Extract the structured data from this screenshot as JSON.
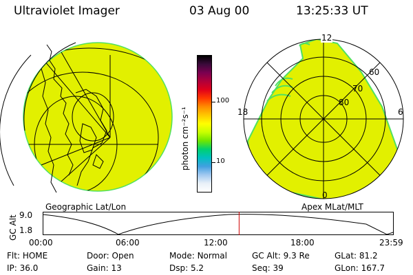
{
  "header": {
    "instrument": "Ultraviolet Imager",
    "date": "03 Aug 00",
    "time": "13:25:33 UT"
  },
  "left_panel": {
    "caption": "Geographic Lat/Lon"
  },
  "right_panel": {
    "caption": "Apex MLat/MLT",
    "mlt_labels": {
      "top": "12",
      "left": "18",
      "right": "6",
      "bottom": "0"
    },
    "mlat_labels": [
      "60",
      "70",
      "80"
    ]
  },
  "colorbar": {
    "unit_label": "photon cm⁻²s⁻¹",
    "ticks": [
      "100",
      "10"
    ],
    "colors": [
      "#000000",
      "#3a0a3a",
      "#7a0050",
      "#b0003a",
      "#e0001a",
      "#ff3a00",
      "#ff8c00",
      "#ffc800",
      "#ffff00",
      "#c8ff00",
      "#70e600",
      "#00d070",
      "#00c0c0",
      "#40a0e0",
      "#a0c8f0",
      "#e8f0f8",
      "#ffffff"
    ]
  },
  "altitude_plot": {
    "ylabel": "GC Alt",
    "y_ticks": [
      "9.0",
      "1.8"
    ],
    "x_ticks": [
      "00:00",
      "06:00",
      "12:00",
      "18:00",
      "23:59"
    ],
    "current_marker_hour": 13.43
  },
  "status": {
    "flt": {
      "label": "Flt:",
      "value": "HOME"
    },
    "ip": {
      "label": "IP:",
      "value": "36.0"
    },
    "door": {
      "label": "Door:",
      "value": "Open"
    },
    "gain": {
      "label": "Gain:",
      "value": "13"
    },
    "mode": {
      "label": "Mode:",
      "value": "Normal"
    },
    "dsp": {
      "label": "Dsp:",
      "value": "5.2"
    },
    "gc_alt": {
      "label": "GC Alt:",
      "value": "9.3 Re"
    },
    "seq": {
      "label": "Seq:",
      "value": "39"
    },
    "glat": {
      "label": "GLat:",
      "value": "81.2"
    },
    "glon": {
      "label": "GLon:",
      "value": "167.7"
    }
  },
  "colors": {
    "image_fill": "#e2f000",
    "image_edge": "#50e060",
    "marker": "#d00000"
  }
}
